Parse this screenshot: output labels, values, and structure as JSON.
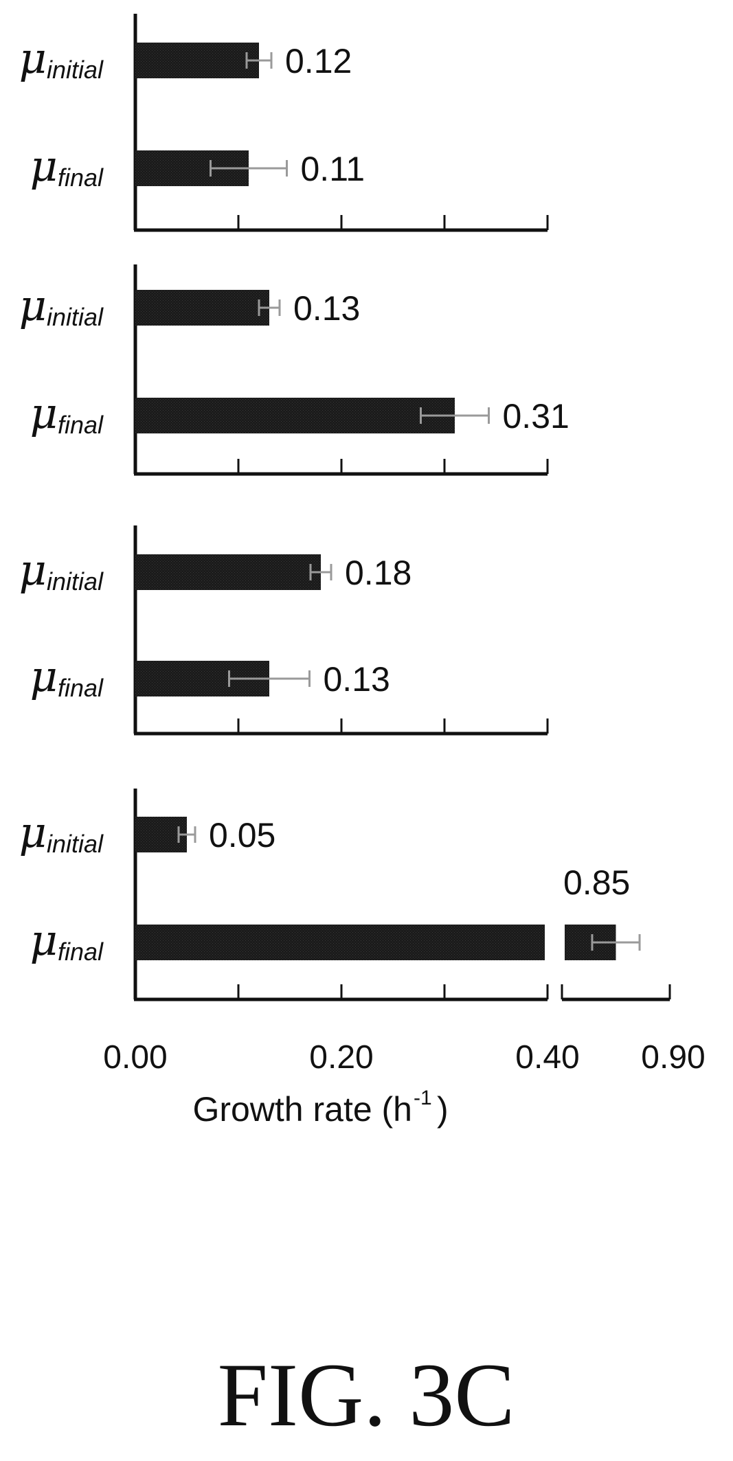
{
  "chart_data": {
    "type": "bar",
    "orientation": "horizontal",
    "xlabel": "Growth rate (h",
    "xlabel_superscript": "-1",
    "xlabel_suffix": ")",
    "xlim": [
      0,
      0.4
    ],
    "xlim_after_break": [
      0.8,
      0.9
    ],
    "axis_break_after": 0.4,
    "tick_labels": [
      "0.00",
      "0.20",
      "0.40",
      "0.90"
    ],
    "error_bars": true,
    "colors": {
      "bar": "#1e1e1e",
      "error": "#9a9a9a",
      "axis": "#111111"
    },
    "panels": [
      {
        "categories": [
          {
            "symbol": "μ",
            "subscript": "initial"
          },
          {
            "symbol": "μ",
            "subscript": "final"
          }
        ],
        "values": [
          0.12,
          0.11
        ],
        "value_labels": [
          "0.12",
          "0.11"
        ],
        "errors": [
          0.012,
          0.037
        ]
      },
      {
        "categories": [
          {
            "symbol": "μ",
            "subscript": "initial"
          },
          {
            "symbol": "μ",
            "subscript": "final"
          }
        ],
        "values": [
          0.13,
          0.31
        ],
        "value_labels": [
          "0.13",
          "0.31"
        ],
        "errors": [
          0.01,
          0.033
        ]
      },
      {
        "categories": [
          {
            "symbol": "μ",
            "subscript": "initial"
          },
          {
            "symbol": "μ",
            "subscript": "final"
          }
        ],
        "values": [
          0.18,
          0.13
        ],
        "value_labels": [
          "0.18",
          "0.13"
        ],
        "errors": [
          0.01,
          0.039
        ]
      },
      {
        "categories": [
          {
            "symbol": "μ",
            "subscript": "initial"
          },
          {
            "symbol": "μ",
            "subscript": "final"
          }
        ],
        "values": [
          0.05,
          0.85
        ],
        "value_labels": [
          "0.05",
          "0.85"
        ],
        "errors": [
          0.008,
          0.022
        ]
      }
    ]
  },
  "figure_label": "FIG. 3C"
}
